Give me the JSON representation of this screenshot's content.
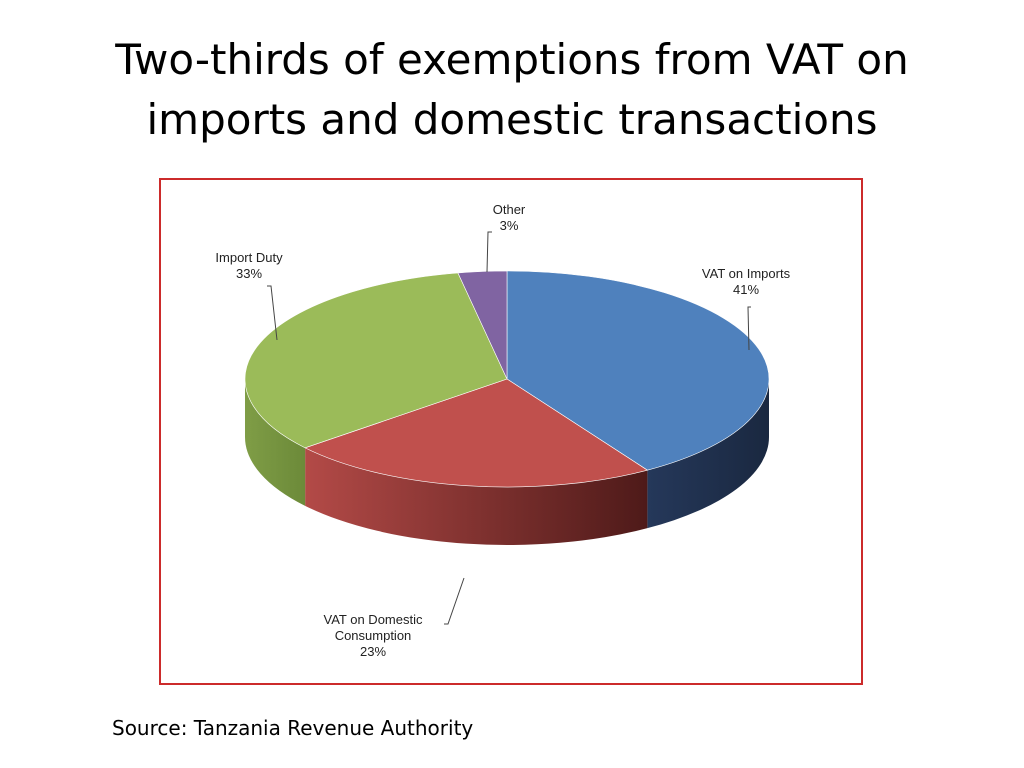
{
  "slide": {
    "title_line1": "Two-thirds of exemptions from VAT on",
    "title_line2": "imports and domestic transactions",
    "source": "Source: Tanzania Revenue Authority"
  },
  "chart_data": {
    "type": "pie",
    "title": "",
    "slices": [
      {
        "name": "VAT on Imports",
        "label_lines": [
          "VAT on Imports",
          "41%"
        ],
        "value": 41,
        "color": "#4f81bd",
        "side_color": "#22334f"
      },
      {
        "name": "VAT on Domestic Consumption",
        "label_lines": [
          "VAT on Domestic",
          "Consumption",
          "23%"
        ],
        "value": 23,
        "color": "#c0504d",
        "side_color": "#8a2e2b"
      },
      {
        "name": "Import Duty",
        "label_lines": [
          "Import Duty",
          "33%"
        ],
        "value": 33,
        "color": "#9bbb59",
        "side_color": "#6f8a3c"
      },
      {
        "name": "Other",
        "label_lines": [
          "Other",
          "3%"
        ],
        "value": 3,
        "color": "#8064a2",
        "side_color": "#553f70"
      }
    ],
    "legend": "none",
    "frame_color": "#cc2b2b"
  }
}
